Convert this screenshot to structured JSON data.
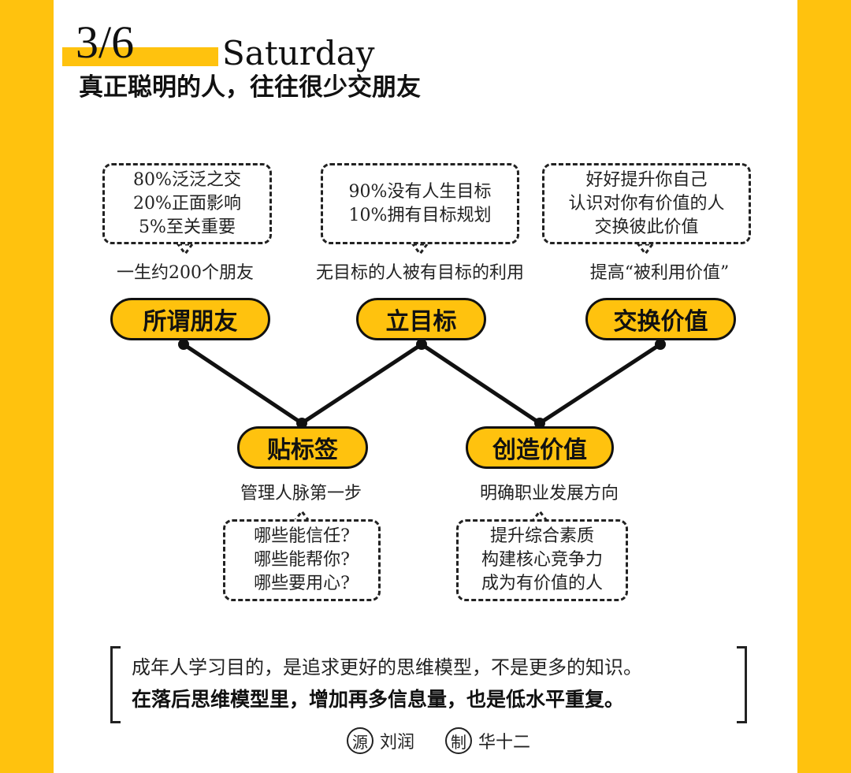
{
  "header": {
    "date_num": "3/6",
    "day": "Saturday",
    "headline": "真正聪明的人，往往很少交朋友"
  },
  "top_nodes": [
    {
      "label": "所谓朋友",
      "caption": "一生约200个朋友",
      "bubble": [
        "80%泛泛之交",
        "20%正面影响",
        "5%至关重要"
      ]
    },
    {
      "label": "立目标",
      "caption": "无目标的人被有目标的利用",
      "bubble": [
        "90%没有人生目标",
        "10%拥有目标规划"
      ]
    },
    {
      "label": "交换价值",
      "caption": "提高“被利用价值”",
      "bubble": [
        "好好提升你自己",
        "认识对你有价值的人",
        "交换彼此价值"
      ]
    }
  ],
  "bottom_nodes": [
    {
      "label": "贴标签",
      "caption": "管理人脉第一步",
      "bubble": [
        "哪些能信任?",
        "哪些能帮你?",
        "哪些要用心?"
      ]
    },
    {
      "label": "创造价值",
      "caption": "明确职业发展方向",
      "bubble": [
        "提升综合素质",
        "构建核心竞争力",
        "成为有价值的人"
      ]
    }
  ],
  "quote": {
    "line1": "成年人学习目的，是追求更好的思维模型，不是更多的知识。",
    "line2": "在落后思维模型里，增加再多信息量，也是低水平重复。"
  },
  "credits": {
    "source_mark": "源",
    "source_name": "刘润",
    "maker_mark": "制",
    "maker_name": "华十二"
  },
  "colors": {
    "accent": "#FFC20E",
    "line": "#111111"
  }
}
